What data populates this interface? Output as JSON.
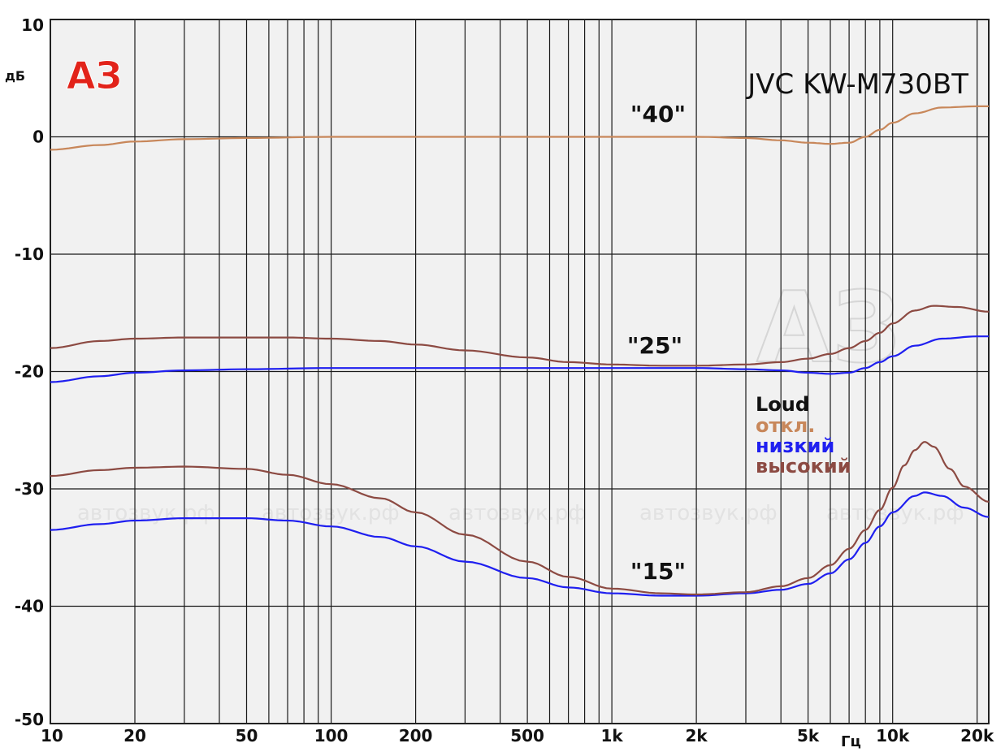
{
  "chart_data": {
    "type": "line",
    "title": "JVC KW-M730BT",
    "xlabel": "Гц",
    "ylabel": "дБ",
    "x_scale": "log",
    "xlim": [
      10,
      22000
    ],
    "ylim": [
      -50,
      10
    ],
    "grid": true,
    "x_ticks": [
      10,
      20,
      50,
      100,
      200,
      500,
      1000,
      2000,
      5000,
      10000,
      20000
    ],
    "x_tick_labels": [
      "10",
      "20",
      "50",
      "100",
      "200",
      "500",
      "1k",
      "2k",
      "5k",
      "10k",
      "20k"
    ],
    "y_ticks": [
      10,
      0,
      -10,
      -20,
      -30,
      -40,
      -50
    ],
    "y_tick_labels": [
      "10",
      "0",
      "-10",
      "-20",
      "-30",
      "-40",
      "-50"
    ],
    "legend_title": "Loud",
    "legend_position": "right",
    "annotations": [
      "\"40\"",
      "\"25\"",
      "\"15\""
    ],
    "logo_text": "АЗ",
    "watermark": "автозвук.рф",
    "series": [
      {
        "name": "откл.",
        "color": "#c8875a",
        "curves": [
          {
            "level": "\"40\"",
            "x": [
              10,
              15,
              20,
              30,
              50,
              100,
              200,
              500,
              1000,
              2000,
              3000,
              4000,
              5000,
              6000,
              7000,
              8000,
              9000,
              10000,
              12000,
              15000,
              20000,
              22000
            ],
            "y": [
              -1.1,
              -0.7,
              -0.4,
              -0.2,
              -0.1,
              0,
              0,
              0,
              0,
              0,
              -0.1,
              -0.3,
              -0.5,
              -0.6,
              -0.5,
              0,
              0.6,
              1.2,
              2.0,
              2.5,
              2.6,
              2.6
            ]
          }
        ]
      },
      {
        "name": "низкий",
        "color": "#1f1ff0",
        "curves": [
          {
            "level": "\"25\"",
            "x": [
              10,
              15,
              20,
              30,
              50,
              100,
              200,
              500,
              1000,
              2000,
              3000,
              4000,
              5000,
              6000,
              7000,
              8000,
              9000,
              10000,
              12000,
              15000,
              20000,
              22000
            ],
            "y": [
              -20.9,
              -20.4,
              -20.1,
              -19.9,
              -19.8,
              -19.7,
              -19.7,
              -19.7,
              -19.7,
              -19.7,
              -19.8,
              -19.9,
              -20.1,
              -20.2,
              -20.1,
              -19.7,
              -19.2,
              -18.7,
              -17.8,
              -17.2,
              -17.0,
              -17.0
            ]
          },
          {
            "level": "\"15\"",
            "x": [
              10,
              15,
              20,
              30,
              50,
              70,
              100,
              150,
              200,
              300,
              500,
              700,
              1000,
              1500,
              2000,
              3000,
              4000,
              5000,
              6000,
              7000,
              8000,
              9000,
              10000,
              12000,
              13000,
              15000,
              18000,
              22000
            ],
            "y": [
              -33.5,
              -33.0,
              -32.7,
              -32.5,
              -32.5,
              -32.7,
              -33.2,
              -34.1,
              -34.9,
              -36.2,
              -37.6,
              -38.4,
              -38.9,
              -39.1,
              -39.1,
              -38.9,
              -38.6,
              -38.1,
              -37.2,
              -36.0,
              -34.6,
              -33.2,
              -32.0,
              -30.6,
              -30.3,
              -30.6,
              -31.6,
              -32.4
            ]
          }
        ]
      },
      {
        "name": "высокий",
        "color": "#8c4a42",
        "curves": [
          {
            "level": "\"25\"",
            "x": [
              10,
              15,
              20,
              30,
              50,
              70,
              100,
              150,
              200,
              300,
              500,
              700,
              1000,
              1500,
              2000,
              3000,
              4000,
              5000,
              6000,
              7000,
              8000,
              9000,
              10000,
              12000,
              14000,
              17000,
              22000
            ],
            "y": [
              -18.0,
              -17.4,
              -17.2,
              -17.1,
              -17.1,
              -17.1,
              -17.2,
              -17.4,
              -17.7,
              -18.2,
              -18.8,
              -19.2,
              -19.4,
              -19.5,
              -19.5,
              -19.4,
              -19.2,
              -18.9,
              -18.5,
              -18.0,
              -17.4,
              -16.7,
              -15.9,
              -14.8,
              -14.4,
              -14.5,
              -14.9
            ]
          },
          {
            "level": "\"15\"",
            "x": [
              10,
              15,
              20,
              30,
              50,
              70,
              100,
              150,
              200,
              300,
              500,
              700,
              1000,
              1500,
              2000,
              3000,
              4000,
              5000,
              6000,
              7000,
              8000,
              9000,
              10000,
              11000,
              12000,
              13000,
              14000,
              16000,
              18000,
              22000
            ],
            "y": [
              -28.9,
              -28.4,
              -28.2,
              -28.1,
              -28.3,
              -28.8,
              -29.6,
              -30.8,
              -32.0,
              -33.9,
              -36.2,
              -37.5,
              -38.5,
              -38.9,
              -39.0,
              -38.8,
              -38.3,
              -37.6,
              -36.5,
              -35.1,
              -33.5,
              -31.8,
              -29.9,
              -28.0,
              -26.7,
              -26.0,
              -26.4,
              -28.3,
              -29.8,
              -31.1
            ]
          }
        ]
      }
    ]
  }
}
